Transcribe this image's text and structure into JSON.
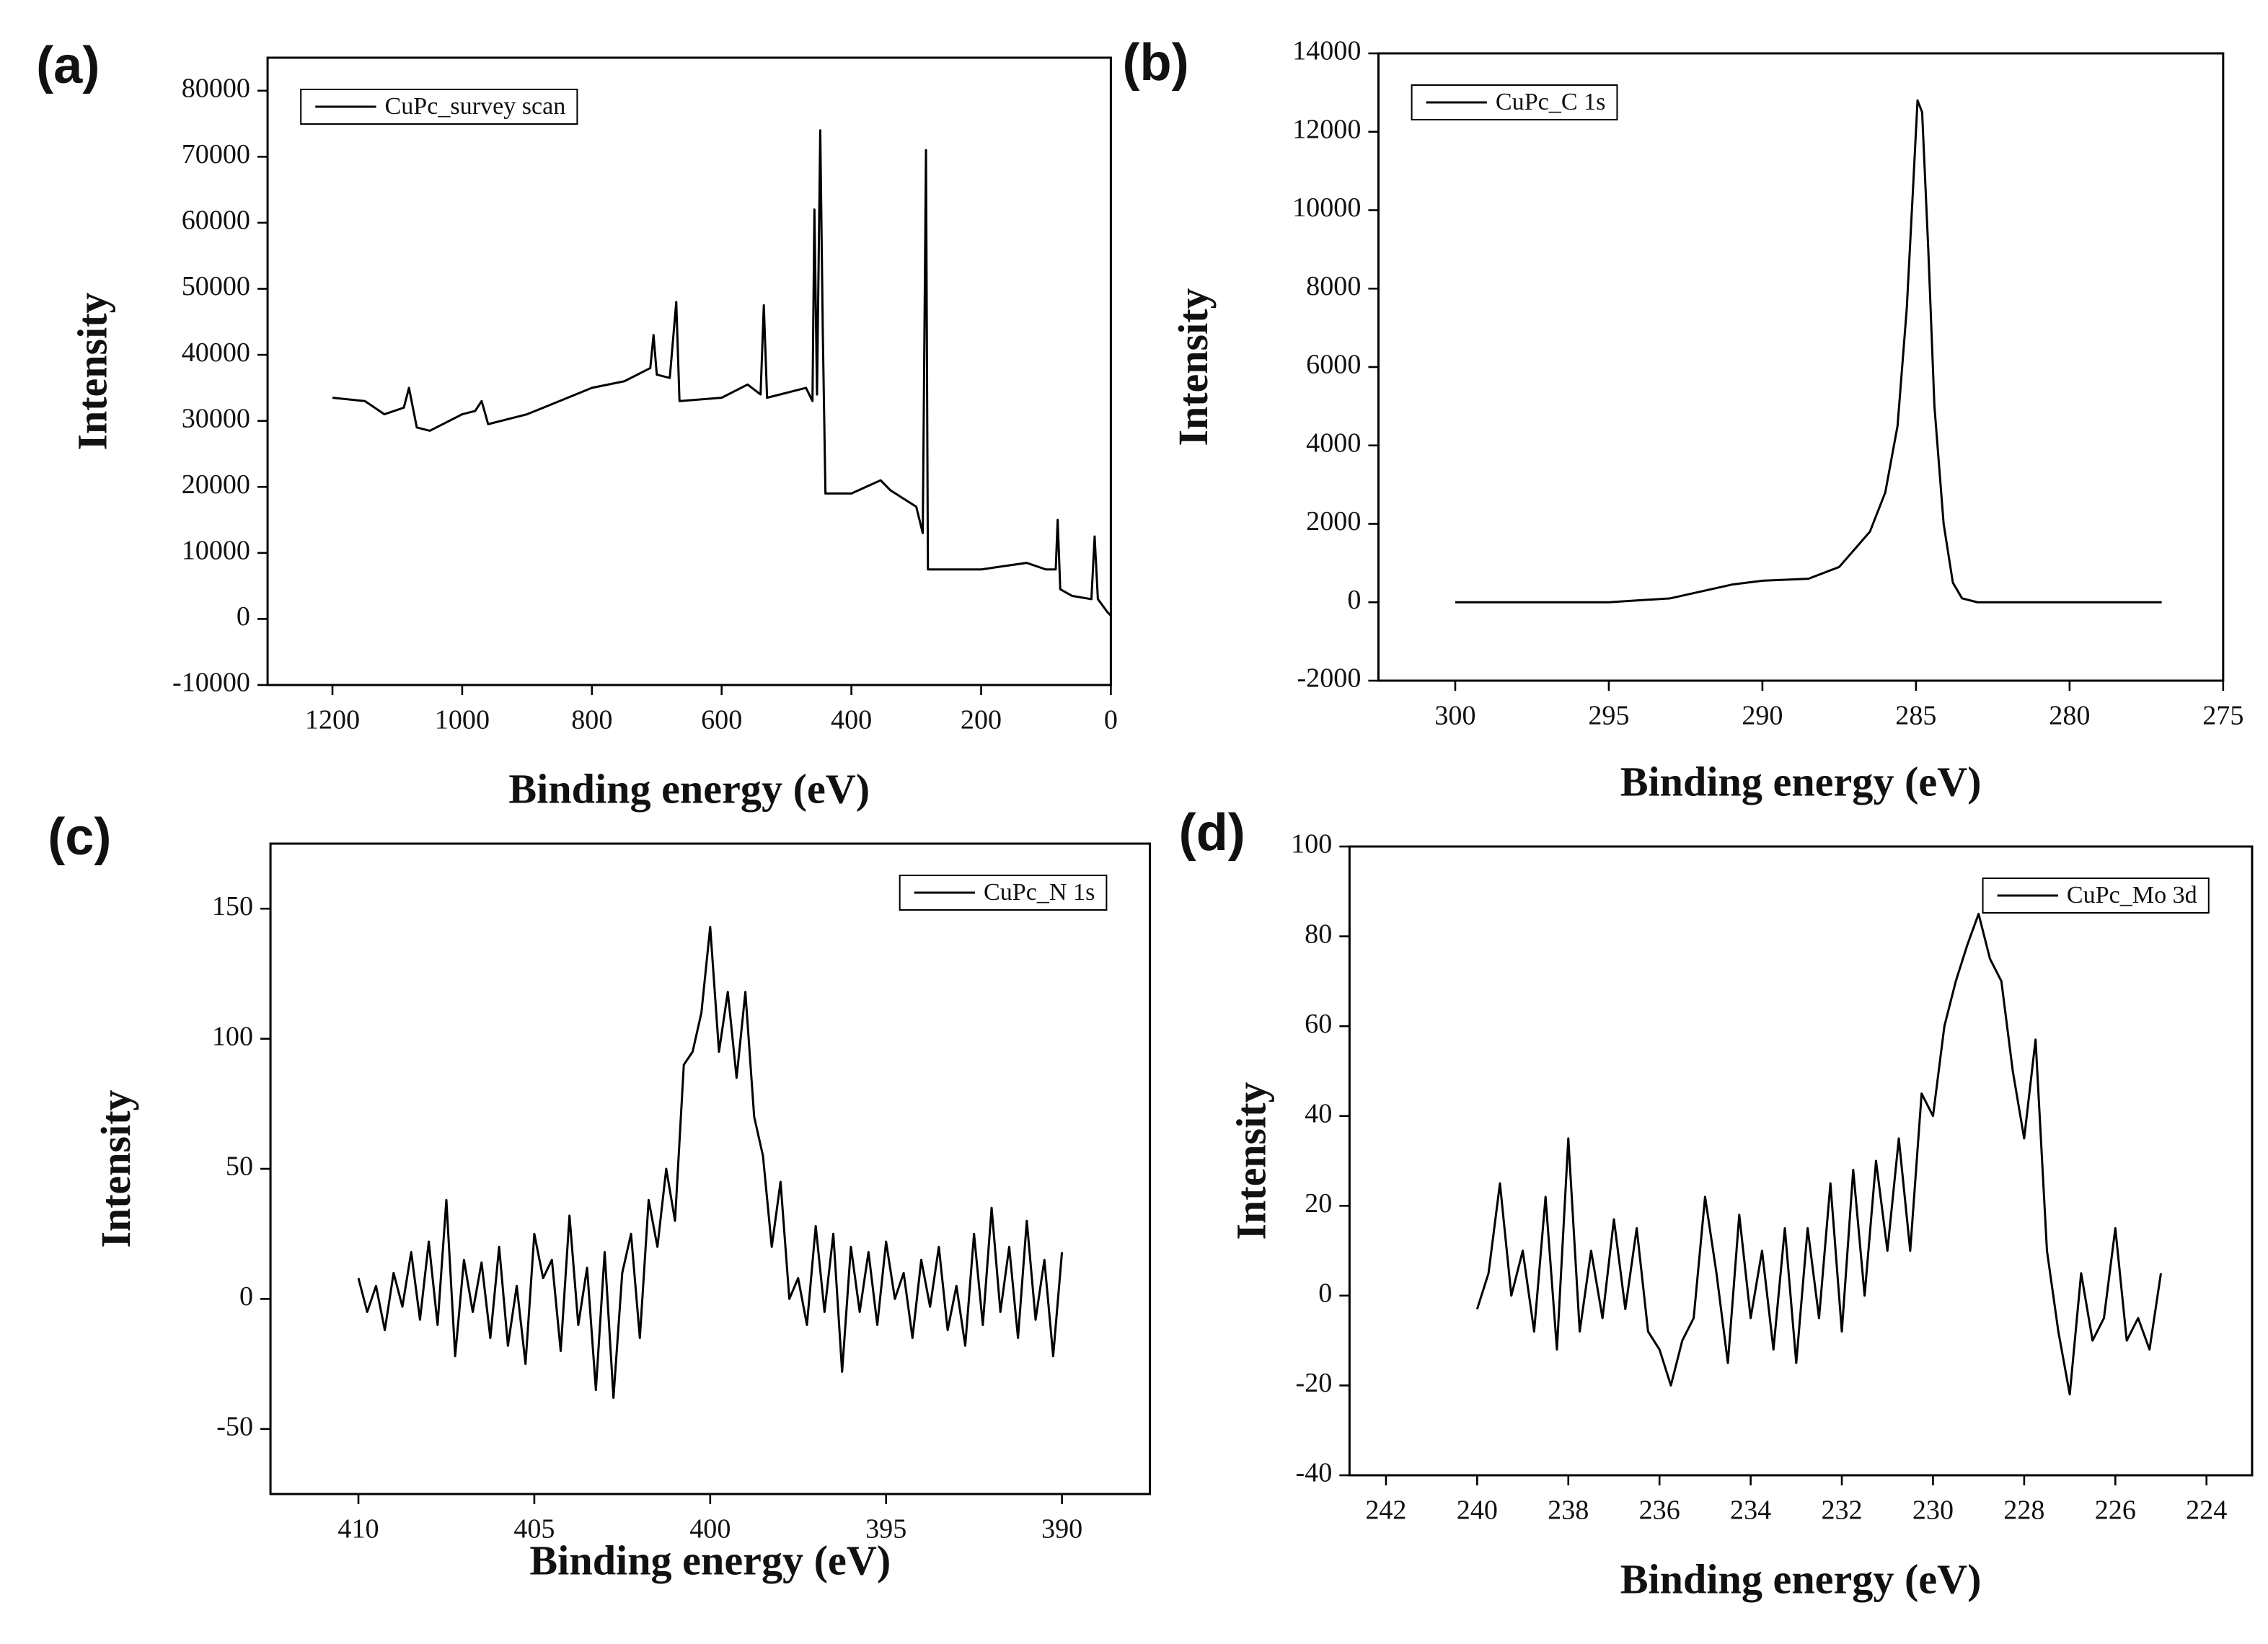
{
  "chart_data": [
    {
      "type": "line",
      "panel_label": "(a)",
      "xlabel": "Binding energy (eV)",
      "ylabel": "Intensity",
      "xlim": [
        1300,
        0
      ],
      "xticks": [
        1200,
        1000,
        800,
        600,
        400,
        200,
        0
      ],
      "ylim": [
        -10000,
        85000
      ],
      "yticks": [
        -10000,
        0,
        10000,
        20000,
        30000,
        40000,
        50000,
        60000,
        70000,
        80000
      ],
      "legend": "upper left",
      "x": [
        1200,
        1150,
        1120,
        1090,
        1082,
        1070,
        1050,
        1000,
        980,
        970,
        960,
        900,
        850,
        800,
        750,
        710,
        705,
        700,
        680,
        670,
        665,
        600,
        560,
        540,
        535,
        530,
        470,
        460,
        457,
        453,
        448,
        444,
        440,
        400,
        355,
        340,
        300,
        290,
        285,
        282,
        200,
        130,
        100,
        85,
        82,
        78,
        60,
        30,
        25,
        20,
        5,
        0
      ],
      "series": [
        {
          "name": "CuPc_survey scan",
          "color": "#000000",
          "values": [
            33500,
            33000,
            31000,
            32000,
            35000,
            29000,
            28500,
            31000,
            31500,
            33000,
            29500,
            31000,
            33000,
            35000,
            36000,
            38000,
            43000,
            37000,
            36500,
            48000,
            33000,
            33500,
            35500,
            34000,
            47500,
            33500,
            35000,
            33000,
            62000,
            34000,
            74000,
            43000,
            19000,
            19000,
            21000,
            19500,
            17000,
            13000,
            71000,
            7500,
            7500,
            8500,
            7500,
            7500,
            15000,
            4500,
            3500,
            3000,
            12500,
            3000,
            1000,
            500
          ]
        }
      ]
    },
    {
      "type": "line",
      "panel_label": "(b)",
      "xlabel": "Binding energy (eV)",
      "ylabel": "Intensity",
      "xlim": [
        302.5,
        275
      ],
      "xticks": [
        300,
        295,
        290,
        285,
        280,
        275
      ],
      "ylim": [
        -2000,
        14000
      ],
      "yticks": [
        -2000,
        0,
        2000,
        4000,
        6000,
        8000,
        10000,
        12000,
        14000
      ],
      "legend": "upper left",
      "x": [
        300,
        295,
        293,
        291,
        290,
        288.5,
        287.5,
        286.5,
        286,
        285.6,
        285.3,
        285.1,
        284.95,
        284.8,
        284.6,
        284.4,
        284.1,
        283.8,
        283.5,
        283,
        277
      ],
      "series": [
        {
          "name": "CuPc_C 1s",
          "color": "#000000",
          "values": [
            0,
            0,
            100,
            450,
            550,
            600,
            900,
            1800,
            2800,
            4500,
            7500,
            10500,
            12800,
            12500,
            9000,
            5000,
            2000,
            500,
            100,
            0,
            0
          ]
        }
      ]
    },
    {
      "type": "line",
      "panel_label": "(c)",
      "xlabel": "Binding energy (eV)",
      "ylabel": "Intensity",
      "xlim": [
        412.5,
        387.5
      ],
      "xticks": [
        410,
        405,
        400,
        395,
        390
      ],
      "ylim": [
        -75,
        175
      ],
      "yticks": [
        -50,
        0,
        50,
        100,
        150
      ],
      "legend": "upper right",
      "x": [
        410,
        409.75,
        409.5,
        409.25,
        409,
        408.75,
        408.5,
        408.25,
        408,
        407.75,
        407.5,
        407.25,
        407,
        406.75,
        406.5,
        406.25,
        406,
        405.75,
        405.5,
        405.25,
        405,
        404.75,
        404.5,
        404.25,
        404,
        403.75,
        403.5,
        403.25,
        403,
        402.75,
        402.5,
        402.25,
        402,
        401.75,
        401.5,
        401.25,
        401,
        400.75,
        400.5,
        400.25,
        400,
        399.75,
        399.5,
        399.25,
        399,
        398.75,
        398.5,
        398.25,
        398,
        397.75,
        397.5,
        397.25,
        397,
        396.75,
        396.5,
        396.25,
        396,
        395.75,
        395.5,
        395.25,
        395,
        394.75,
        394.5,
        394.25,
        394,
        393.75,
        393.5,
        393.25,
        393,
        392.75,
        392.5,
        392.25,
        392,
        391.75,
        391.5,
        391.25,
        391,
        390.75,
        390.5,
        390.25,
        390
      ],
      "series": [
        {
          "name": "CuPc_N 1s",
          "color": "#000000",
          "values": [
            8,
            -5,
            5,
            -12,
            10,
            -3,
            18,
            -8,
            22,
            -10,
            38,
            -22,
            15,
            -5,
            14,
            -15,
            20,
            -18,
            5,
            -25,
            25,
            8,
            15,
            -20,
            32,
            -10,
            12,
            -35,
            18,
            -38,
            10,
            25,
            -15,
            38,
            20,
            50,
            30,
            90,
            95,
            110,
            143,
            95,
            118,
            85,
            118,
            70,
            55,
            20,
            45,
            0,
            8,
            -10,
            28,
            -5,
            25,
            -28,
            20,
            -5,
            18,
            -10,
            22,
            0,
            10,
            -15,
            15,
            -3,
            20,
            -12,
            5,
            -18,
            25,
            -10,
            35,
            -5,
            20,
            -15,
            30,
            -8,
            15,
            -22,
            18
          ]
        }
      ]
    },
    {
      "type": "line",
      "panel_label": "(d)",
      "xlabel": "Binding energy (eV)",
      "ylabel": "Intensity",
      "xlim": [
        242.8,
        223
      ],
      "xticks": [
        242,
        240,
        238,
        236,
        234,
        232,
        230,
        228,
        226,
        224
      ],
      "ylim": [
        -40,
        100
      ],
      "yticks": [
        -40,
        -20,
        0,
        20,
        40,
        60,
        80,
        100
      ],
      "legend": "upper right",
      "x": [
        240,
        239.75,
        239.5,
        239.25,
        239,
        238.75,
        238.5,
        238.25,
        238,
        237.75,
        237.5,
        237.25,
        237,
        236.75,
        236.5,
        236.25,
        236,
        235.75,
        235.5,
        235.25,
        235,
        234.75,
        234.5,
        234.25,
        234,
        233.75,
        233.5,
        233.25,
        233,
        232.75,
        232.5,
        232.25,
        232,
        231.75,
        231.5,
        231.25,
        231,
        230.75,
        230.5,
        230.25,
        230,
        229.75,
        229.5,
        229.25,
        229,
        228.75,
        228.5,
        228.25,
        228,
        227.75,
        227.5,
        227.25,
        227,
        226.75,
        226.5,
        226.25,
        226,
        225.75,
        225.5,
        225.25,
        225
      ],
      "series": [
        {
          "name": "CuPc_Mo 3d",
          "color": "#000000",
          "values": [
            -3,
            5,
            25,
            0,
            10,
            -8,
            22,
            -12,
            35,
            -8,
            10,
            -5,
            17,
            -3,
            15,
            -8,
            -12,
            -20,
            -10,
            -5,
            22,
            5,
            -15,
            18,
            -5,
            10,
            -12,
            15,
            -15,
            15,
            -5,
            25,
            -8,
            28,
            0,
            30,
            10,
            35,
            10,
            45,
            40,
            60,
            70,
            78,
            85,
            75,
            70,
            50,
            35,
            57,
            10,
            -8,
            -22,
            5,
            -10,
            -5,
            15,
            -10,
            -5,
            -12,
            5
          ]
        }
      ]
    }
  ]
}
